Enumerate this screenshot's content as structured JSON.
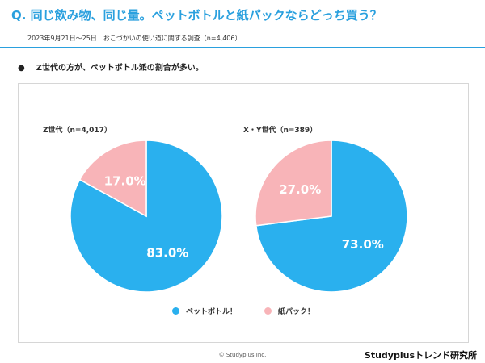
{
  "header": {
    "title": "Q. 同じ飲み物、同じ量。ペットボトルと紙パックならどっち買う？",
    "subtitle": "2023年9月21日〜25日　おこづかいの使い道に関する調査（n=4,406）"
  },
  "summary": {
    "bullet": "●",
    "text": "Z世代の方が、ペットボトル派の割合が多い。"
  },
  "colors": {
    "accent": "#2aa0de",
    "pet_bottle": "#2ab0ee",
    "paper_pack": "#f8b4b8"
  },
  "chart_data": [
    {
      "type": "pie",
      "title": "Z世代（n=4,017）",
      "categories": [
        "ペットボトル！",
        "紙パック！"
      ],
      "values": [
        83.0,
        17.0
      ],
      "labels": [
        "83.0%",
        "17.0%"
      ]
    },
    {
      "type": "pie",
      "title": "X・Y世代（n=389）",
      "categories": [
        "ペットボトル！",
        "紙パック！"
      ],
      "values": [
        73.0,
        27.0
      ],
      "labels": [
        "73.0%",
        "27.0%"
      ]
    }
  ],
  "legend": {
    "position": "bottom-center",
    "items": [
      {
        "label": "ペットボトル！",
        "color": "#2ab0ee"
      },
      {
        "label": "紙パック！",
        "color": "#f8b4b8"
      }
    ]
  },
  "footer": {
    "copyright": "© Studyplus Inc.",
    "brand": "Studyplusトレンド研究所"
  }
}
